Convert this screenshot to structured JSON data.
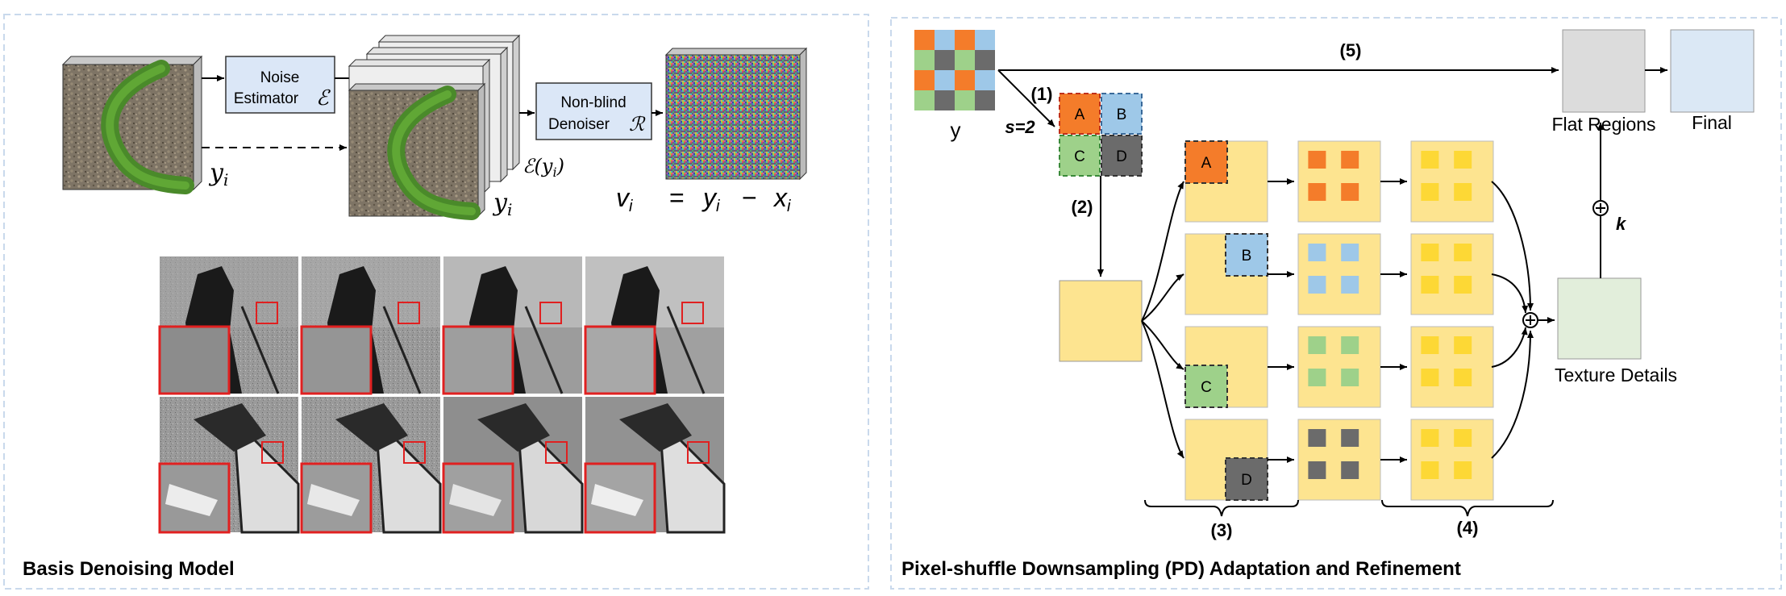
{
  "left_panel": {
    "title": "Basis Denoising Model",
    "noise_estimator": {
      "line1": "Noise",
      "line2": "Estimator",
      "symbol": "ℰ"
    },
    "denoiser": {
      "line1": "Non-blind",
      "line2": "Denoiser",
      "symbol": "ℛ"
    },
    "label_yi_1": "y",
    "label_yi_2": "y",
    "subscript_i": "i",
    "label_e_yi": "ℰ(y",
    "label_e_yi_close": ")",
    "equation": {
      "v": "v",
      "eq": "=",
      "y": "y",
      "minus": "−",
      "x": "x"
    }
  },
  "right_panel": {
    "title": "Pixel-shuffle Downsampling (PD) Adaptation and Refinement",
    "input_label": "y",
    "stride_label": "s=2",
    "step1": "(1)",
    "step2": "(2)",
    "step3": "(3)",
    "step4": "(4)",
    "step5": "(5)",
    "subimages": [
      "A",
      "B",
      "C",
      "D"
    ],
    "flat_regions": "Flat Regions",
    "final": "Final",
    "texture_details": "Texture Details",
    "k_label": "k",
    "plus_symbol": "⊕"
  },
  "colors": {
    "A": "#f47c2a",
    "B": "#9ec8e8",
    "C": "#9ed18a",
    "D": "#6b6b6b",
    "yellow_bg": "#fde490",
    "gold": "#fdd835",
    "box_blue": "#dbe7f7",
    "flat_gray": "#dcdcdc",
    "final_blue": "#dbe8f5",
    "texture_green": "#e2eedb",
    "panel_border": "#c9d9ec"
  }
}
